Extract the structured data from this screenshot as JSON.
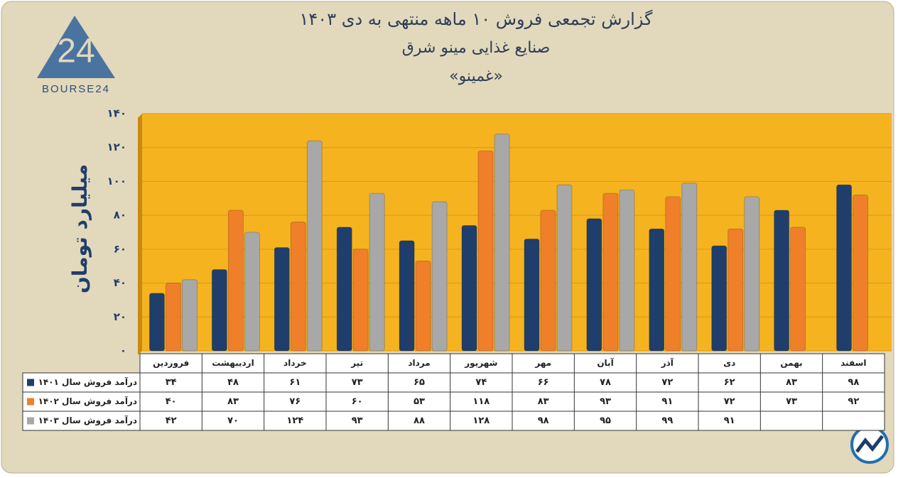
{
  "chart_data": {
    "type": "bar",
    "title": "گزارش تجمعی فروش ۱۰ ماهه منتهی به دی ۱۴۰۳",
    "subtitle": "صنایع غذایی مینو شرق",
    "annotation": "«غمینو»",
    "logo_text": "BOURSE24",
    "logo_mark": "24",
    "y_label": "میلیارد تومان",
    "categories": [
      "فروردین",
      "اردیبهشت",
      "خرداد",
      "تیر",
      "مرداد",
      "شهریور",
      "مهر",
      "آبان",
      "آذر",
      "دی",
      "بهمن",
      "اسفند"
    ],
    "series": [
      {
        "name": "درآمد فروش سال ۱۴۰۱",
        "color": "#1f3e6b",
        "values": [
          34,
          48,
          61,
          73,
          65,
          74,
          66,
          78,
          72,
          62,
          83,
          98
        ],
        "value_labels": [
          "۳۴",
          "۴۸",
          "۶۱",
          "۷۳",
          "۶۵",
          "۷۴",
          "۶۶",
          "۷۸",
          "۷۲",
          "۶۲",
          "۸۳",
          "۹۸"
        ]
      },
      {
        "name": "درآمد فروش سال ۱۴۰۲",
        "color": "#f07f2a",
        "values": [
          40,
          83,
          76,
          60,
          53,
          118,
          83,
          93,
          91,
          72,
          73,
          92
        ],
        "value_labels": [
          "۴۰",
          "۸۳",
          "۷۶",
          "۶۰",
          "۵۳",
          "۱۱۸",
          "۸۳",
          "۹۳",
          "۹۱",
          "۷۲",
          "۷۳",
          "۹۲"
        ]
      },
      {
        "name": "درآمد فروش سال ۱۴۰۳",
        "color": "#a8a8a8",
        "values": [
          42,
          70,
          124,
          93,
          88,
          128,
          98,
          95,
          99,
          91,
          null,
          null
        ],
        "value_labels": [
          "۴۲",
          "۷۰",
          "۱۲۴",
          "۹۳",
          "۸۸",
          "۱۲۸",
          "۹۸",
          "۹۵",
          "۹۹",
          "۹۱",
          null,
          null
        ]
      }
    ],
    "ylim": [
      0,
      140
    ],
    "yticks": [
      {
        "value": 0,
        "label": "۰"
      },
      {
        "value": 20,
        "label": "۲۰"
      },
      {
        "value": 40,
        "label": "۴۰"
      },
      {
        "value": 60,
        "label": "۶۰"
      },
      {
        "value": 80,
        "label": "۸۰"
      },
      {
        "value": 100,
        "label": "۱۰۰"
      },
      {
        "value": 120,
        "label": "۱۲۰"
      },
      {
        "value": 140,
        "label": "۱۴۰"
      }
    ],
    "grid": true,
    "plot_color": "#f5b320"
  }
}
